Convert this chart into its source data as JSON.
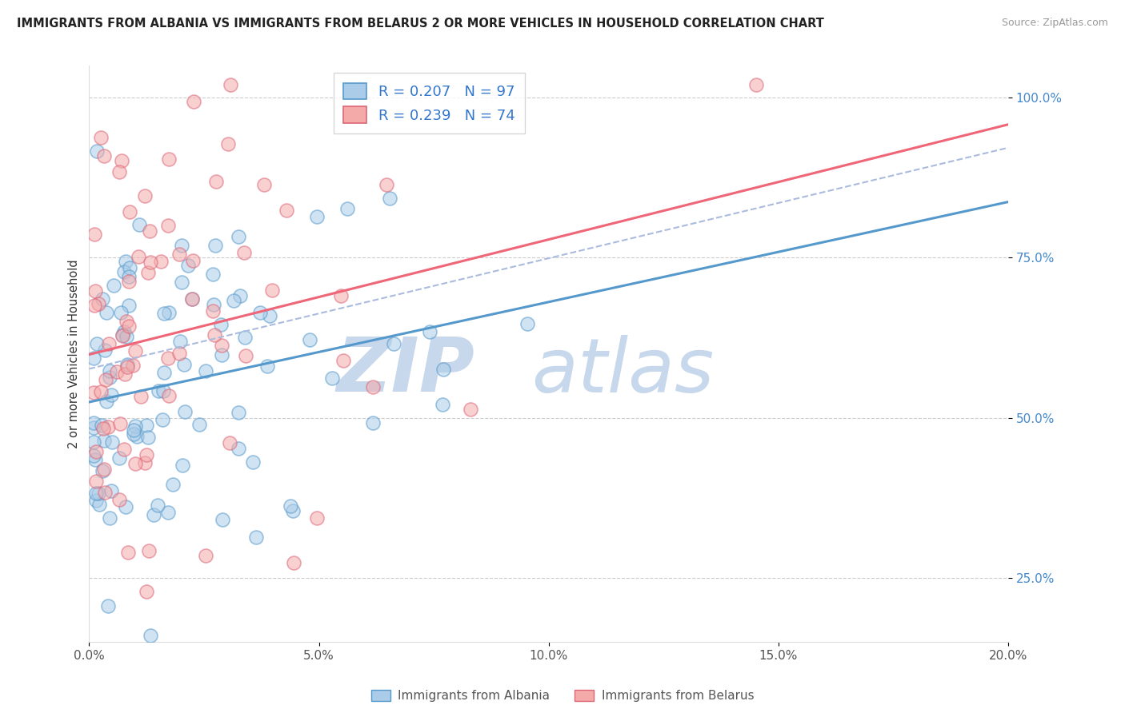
{
  "title": "IMMIGRANTS FROM ALBANIA VS IMMIGRANTS FROM BELARUS 2 OR MORE VEHICLES IN HOUSEHOLD CORRELATION CHART",
  "source": "Source: ZipAtlas.com",
  "ylabel": "2 or more Vehicles in Household",
  "legend_albania": "Immigrants from Albania",
  "legend_belarus": "Immigrants from Belarus",
  "R_albania": 0.207,
  "N_albania": 97,
  "R_belarus": 0.239,
  "N_belarus": 74,
  "color_albania_fill": "#aacce8",
  "color_albania_edge": "#5599cc",
  "color_belarus_fill": "#f5aaaa",
  "color_belarus_edge": "#dd6677",
  "color_albania_line": "#5599cc",
  "color_belarus_line": "#ee6677",
  "color_dashed": "#aabbdd",
  "xmin": 0.0,
  "xmax": 0.2,
  "ymin": 0.15,
  "ymax": 1.05,
  "yticks": [
    0.25,
    0.5,
    0.75,
    1.0
  ],
  "ytick_labels": [
    "25.0%",
    "50.0%",
    "75.0%",
    "100.0%"
  ],
  "xticks": [
    0.0,
    0.05,
    0.1,
    0.15,
    0.2
  ],
  "xtick_labels": [
    "0.0%",
    "5.0%",
    "10.0%",
    "15.0%",
    "20.0%"
  ],
  "watermark_zip": "ZIP",
  "watermark_atlas": "atlas"
}
